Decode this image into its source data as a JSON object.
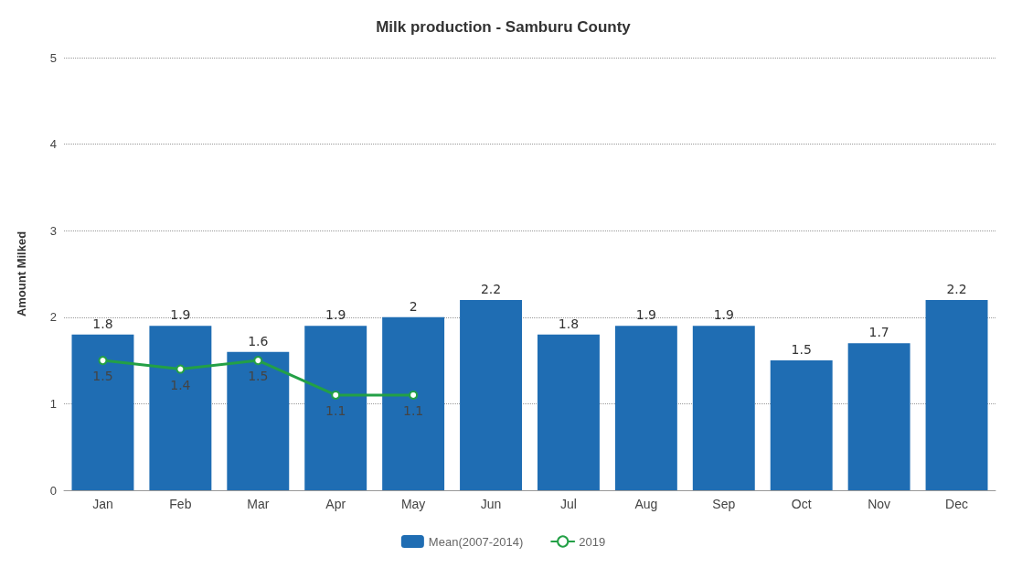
{
  "chart_data": {
    "type": "bar",
    "title": "Milk production - Samburu County",
    "ylabel": "Amount Milked",
    "categories": [
      "Jan",
      "Feb",
      "Mar",
      "Apr",
      "May",
      "Jun",
      "Jul",
      "Aug",
      "Sep",
      "Oct",
      "Nov",
      "Dec"
    ],
    "series": [
      {
        "name": "Mean(2007-2014)",
        "color": "#1f6db3",
        "values": [
          1.8,
          1.9,
          1.6,
          1.9,
          2,
          2.2,
          1.8,
          1.9,
          1.9,
          1.5,
          1.7,
          2.2
        ]
      },
      {
        "name": "2019",
        "type": "line",
        "color": "#23a046",
        "values": [
          1.5,
          1.4,
          1.5,
          1.1,
          1.1,
          null,
          null,
          null,
          null,
          null,
          null,
          null
        ]
      }
    ],
    "ylim": [
      0,
      5
    ],
    "yticks": [
      0,
      1,
      2,
      3,
      4,
      5
    ],
    "grid": "y",
    "legend": "bottom",
    "marker": "circle",
    "line_style": "solid",
    "data_labels": true
  }
}
